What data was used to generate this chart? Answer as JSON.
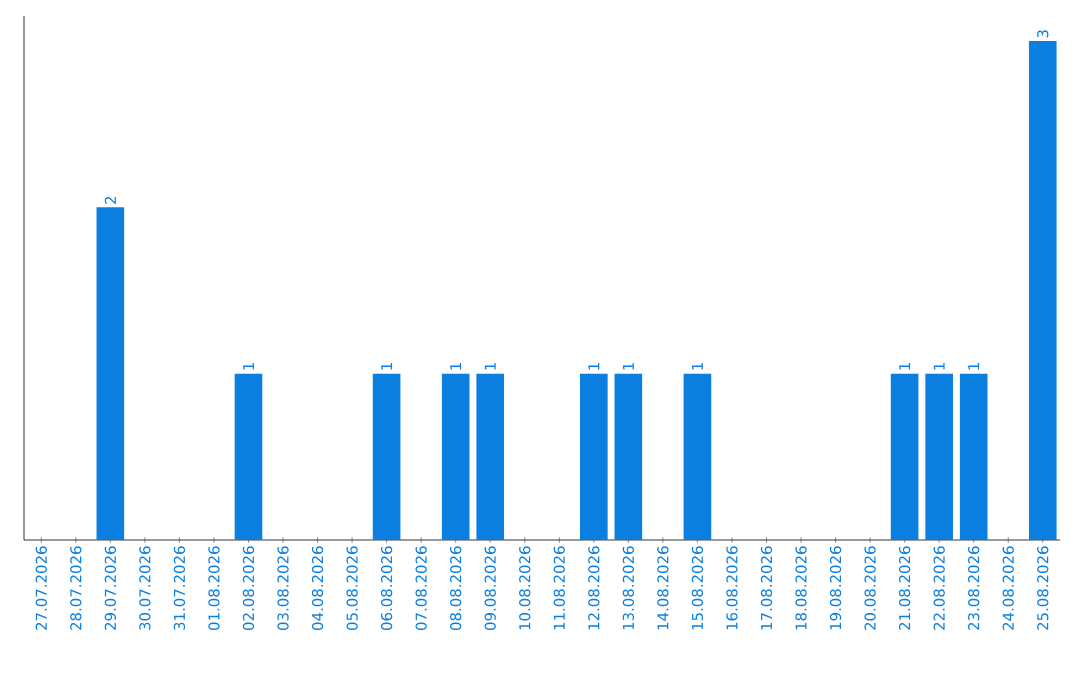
{
  "chart_data": {
    "type": "bar",
    "color": "#0a7fe0",
    "categories": [
      "27.07.2026",
      "28.07.2026",
      "29.07.2026",
      "30.07.2026",
      "31.07.2026",
      "01.08.2026",
      "02.08.2026",
      "03.08.2026",
      "04.08.2026",
      "05.08.2026",
      "06.08.2026",
      "07.08.2026",
      "08.08.2026",
      "09.08.2026",
      "10.08.2026",
      "11.08.2026",
      "12.08.2026",
      "13.08.2026",
      "14.08.2026",
      "15.08.2026",
      "16.08.2026",
      "17.08.2026",
      "18.08.2026",
      "19.08.2026",
      "20.08.2026",
      "21.08.2026",
      "22.08.2026",
      "23.08.2026",
      "24.08.2026",
      "25.08.2026"
    ],
    "values": [
      0,
      0,
      2,
      0,
      0,
      0,
      1,
      0,
      0,
      0,
      1,
      0,
      1,
      1,
      0,
      0,
      1,
      1,
      0,
      1,
      0,
      0,
      0,
      0,
      0,
      1,
      1,
      1,
      0,
      3
    ],
    "value_labels": [
      null,
      null,
      "2",
      null,
      null,
      null,
      "1",
      null,
      null,
      null,
      "1",
      null,
      "1",
      "1",
      null,
      null,
      "1",
      "1",
      null,
      "1",
      null,
      null,
      null,
      null,
      null,
      "1",
      "1",
      "1",
      null,
      "3"
    ],
    "tick_labels": "x",
    "grid": false
  }
}
